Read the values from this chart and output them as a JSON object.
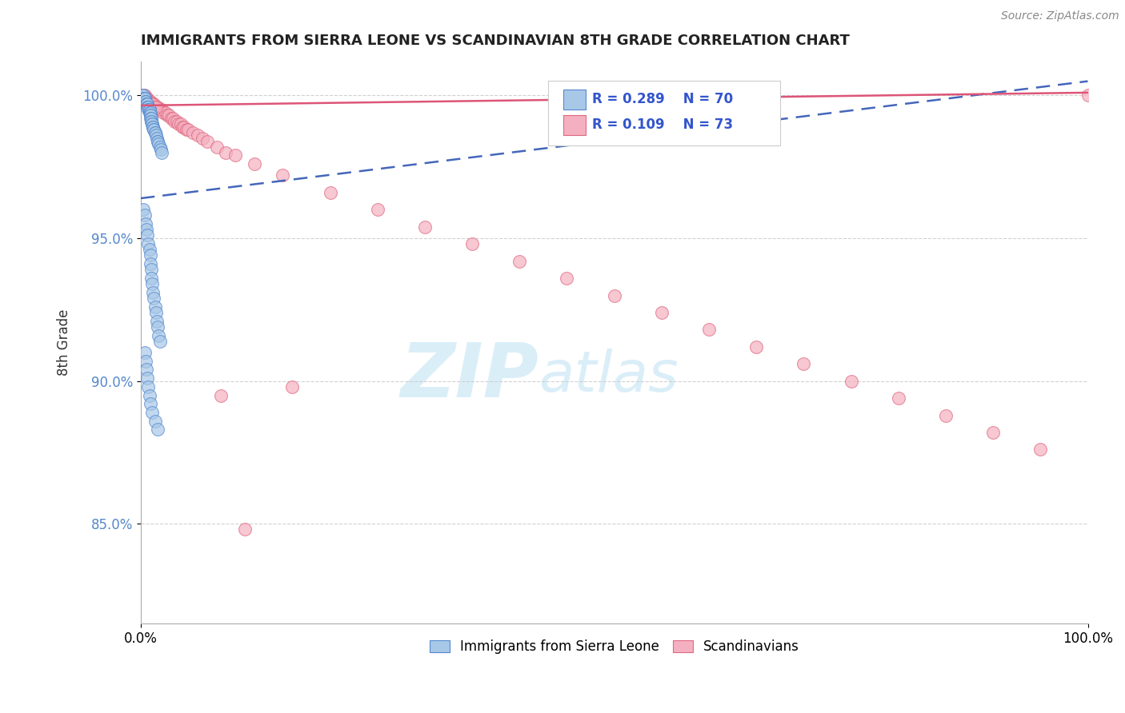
{
  "title": "IMMIGRANTS FROM SIERRA LEONE VS SCANDINAVIAN 8TH GRADE CORRELATION CHART",
  "source": "Source: ZipAtlas.com",
  "ylabel": "8th Grade",
  "xlim": [
    0.0,
    1.0
  ],
  "ylim": [
    0.815,
    1.012
  ],
  "yticks": [
    0.85,
    0.9,
    0.95,
    1.0
  ],
  "ytick_labels": [
    "85.0%",
    "90.0%",
    "95.0%",
    "100.0%"
  ],
  "xticks": [
    0.0,
    1.0
  ],
  "xtick_labels": [
    "0.0%",
    "100.0%"
  ],
  "legend_labels": [
    "Immigrants from Sierra Leone",
    "Scandinavians"
  ],
  "R_blue": 0.289,
  "N_blue": 70,
  "R_pink": 0.109,
  "N_pink": 73,
  "blue_color": "#a8c8e8",
  "pink_color": "#f4b0c0",
  "blue_edge_color": "#5588cc",
  "pink_edge_color": "#e06880",
  "blue_line_color": "#4466bb",
  "pink_line_color": "#dd5577",
  "legend_text_color": "#3355cc",
  "ytick_color": "#5588cc",
  "watermark_color": "#daeef8",
  "background_color": "#ffffff",
  "grid_color": "#cccccc",
  "blue_x": [
    0.002,
    0.003,
    0.003,
    0.004,
    0.004,
    0.005,
    0.005,
    0.006,
    0.006,
    0.007,
    0.007,
    0.008,
    0.008,
    0.008,
    0.009,
    0.009,
    0.009,
    0.01,
    0.01,
    0.01,
    0.01,
    0.011,
    0.011,
    0.011,
    0.012,
    0.012,
    0.013,
    0.013,
    0.014,
    0.014,
    0.015,
    0.015,
    0.016,
    0.017,
    0.018,
    0.018,
    0.019,
    0.02,
    0.021,
    0.022,
    0.003,
    0.004,
    0.005,
    0.006,
    0.007,
    0.008,
    0.009,
    0.01,
    0.01,
    0.011,
    0.011,
    0.012,
    0.013,
    0.014,
    0.015,
    0.016,
    0.017,
    0.018,
    0.019,
    0.02,
    0.004,
    0.005,
    0.006,
    0.007,
    0.008,
    0.009,
    0.01,
    0.012,
    0.015,
    0.018
  ],
  "blue_y": [
    1.0,
    1.0,
    0.999,
    0.999,
    0.999,
    0.998,
    0.998,
    0.997,
    0.997,
    0.997,
    0.996,
    0.996,
    0.996,
    0.995,
    0.995,
    0.995,
    0.994,
    0.994,
    0.993,
    0.993,
    0.992,
    0.992,
    0.991,
    0.991,
    0.99,
    0.99,
    0.989,
    0.989,
    0.988,
    0.988,
    0.987,
    0.987,
    0.986,
    0.985,
    0.984,
    0.984,
    0.983,
    0.982,
    0.981,
    0.98,
    0.96,
    0.958,
    0.955,
    0.953,
    0.951,
    0.948,
    0.946,
    0.944,
    0.941,
    0.939,
    0.936,
    0.934,
    0.931,
    0.929,
    0.926,
    0.924,
    0.921,
    0.919,
    0.916,
    0.914,
    0.91,
    0.907,
    0.904,
    0.901,
    0.898,
    0.895,
    0.892,
    0.889,
    0.886,
    0.883
  ],
  "pink_x": [
    0.003,
    0.004,
    0.005,
    0.006,
    0.007,
    0.008,
    0.009,
    0.01,
    0.011,
    0.012,
    0.013,
    0.014,
    0.015,
    0.016,
    0.017,
    0.018,
    0.019,
    0.02,
    0.022,
    0.024,
    0.026,
    0.028,
    0.03,
    0.032,
    0.034,
    0.036,
    0.038,
    0.04,
    0.042,
    0.044,
    0.046,
    0.048,
    0.05,
    0.055,
    0.06,
    0.065,
    0.07,
    0.08,
    0.09,
    0.1,
    0.12,
    0.15,
    0.2,
    0.25,
    0.3,
    0.35,
    0.4,
    0.45,
    0.5,
    0.55,
    0.6,
    0.65,
    0.7,
    0.75,
    0.8,
    0.85,
    0.9,
    0.95,
    1.0,
    0.004,
    0.005,
    0.006,
    0.007,
    0.008,
    0.009,
    0.01,
    0.011,
    0.012,
    0.014,
    0.016,
    0.16,
    0.11,
    0.085
  ],
  "pink_y": [
    1.0,
    1.0,
    0.999,
    0.999,
    0.999,
    0.998,
    0.998,
    0.998,
    0.997,
    0.997,
    0.997,
    0.997,
    0.996,
    0.996,
    0.996,
    0.996,
    0.995,
    0.995,
    0.995,
    0.994,
    0.994,
    0.993,
    0.993,
    0.992,
    0.992,
    0.991,
    0.991,
    0.99,
    0.99,
    0.989,
    0.989,
    0.988,
    0.988,
    0.987,
    0.986,
    0.985,
    0.984,
    0.982,
    0.98,
    0.979,
    0.976,
    0.972,
    0.966,
    0.96,
    0.954,
    0.948,
    0.942,
    0.936,
    0.93,
    0.924,
    0.918,
    0.912,
    0.906,
    0.9,
    0.894,
    0.888,
    0.882,
    0.876,
    1.0,
    0.999,
    0.999,
    0.998,
    0.998,
    0.998,
    0.997,
    0.997,
    0.997,
    0.997,
    0.996,
    0.996,
    0.898,
    0.848,
    0.895
  ],
  "blue_trend_x": [
    0.0,
    1.0
  ],
  "blue_trend_y": [
    0.964,
    1.005
  ],
  "pink_trend_x": [
    0.0,
    1.0
  ],
  "pink_trend_y": [
    0.9965,
    1.001
  ]
}
